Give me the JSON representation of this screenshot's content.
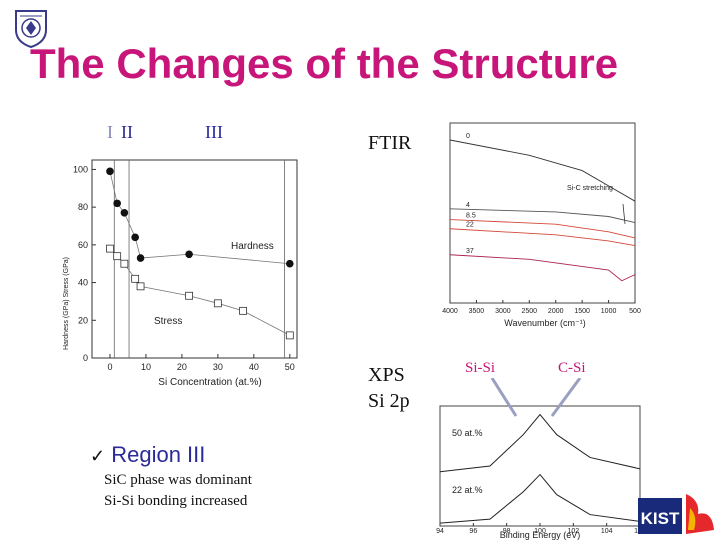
{
  "title": "The Changes of the Structure",
  "regions": {
    "r1": "I",
    "r2": "II",
    "r3": "III"
  },
  "ftir_label": "FTIR",
  "xps_label": "XPS",
  "xps_sub": "Si 2p",
  "xps_peaks": {
    "sisi": "Si-Si",
    "csi": "C-Si"
  },
  "bullet": {
    "heading": "Region III",
    "lines": [
      "SiC phase was dominant",
      "Si-Si bonding increased"
    ]
  },
  "logo": {
    "text": "KIST"
  },
  "chart_data": [
    {
      "type": "scatter",
      "xlabel": "Si Concentration (at.%)",
      "ylabel": "",
      "xlim": [
        -5,
        52
      ],
      "ylim": [
        0,
        105
      ],
      "xticks": [
        "0",
        "10",
        "20",
        "30",
        "40",
        "50"
      ],
      "yticks": [
        "0",
        "20",
        "40",
        "60",
        "80",
        "100"
      ],
      "series": [
        {
          "name": "Hardness",
          "x": [
            0,
            2,
            4,
            7,
            8.5,
            22,
            50
          ],
          "y": [
            99,
            82,
            77,
            64,
            53,
            55,
            50
          ]
        },
        {
          "name": "Stress",
          "x": [
            0,
            2,
            4,
            7,
            8.5,
            22,
            30,
            37,
            50
          ],
          "y": [
            58,
            54,
            50,
            42,
            38,
            33,
            29,
            25,
            12
          ]
        }
      ],
      "y_axis_text": "Hardness (GPa)  Stress (GPa)"
    },
    {
      "type": "line",
      "xlabel": "Wavenumber (cm⁻¹)",
      "xlim": [
        4000,
        500
      ],
      "xticks": [
        "4000",
        "3500",
        "3000",
        "2500",
        "2000",
        "1500",
        "1000",
        "500"
      ],
      "series": [
        {
          "name": "0",
          "x": [
            4000,
            2500,
            1500,
            1000,
            500
          ],
          "y": [
            1.0,
            0.9,
            0.8,
            0.7,
            0.6
          ]
        },
        {
          "name": "4",
          "x": [
            4000,
            2000,
            1000,
            500
          ],
          "y": [
            0.55,
            0.53,
            0.5,
            0.46
          ]
        },
        {
          "name": "8.5",
          "x": [
            4000,
            2000,
            1000,
            500
          ],
          "y": [
            0.48,
            0.45,
            0.4,
            0.36
          ]
        },
        {
          "name": "22",
          "x": [
            4000,
            2000,
            1000,
            500
          ],
          "y": [
            0.42,
            0.38,
            0.34,
            0.31
          ]
        },
        {
          "name": "37",
          "x": [
            4000,
            2500,
            1000,
            750,
            500
          ],
          "y": [
            0.25,
            0.22,
            0.15,
            0.08,
            0.12
          ]
        }
      ],
      "annotation": "Si-C stretching"
    },
    {
      "type": "line",
      "xlabel": "Binding Energy (eV)",
      "xlim": [
        94,
        106
      ],
      "xticks": [
        "94",
        "96",
        "98",
        "100",
        "102",
        "104",
        "106"
      ],
      "series": [
        {
          "name": "50 at.%",
          "x": [
            94,
            97,
            99,
            100,
            101,
            103,
            106
          ],
          "y": [
            0.95,
            1.05,
            1.6,
            1.95,
            1.6,
            1.2,
            1.0
          ]
        },
        {
          "name": "22 at.%",
          "x": [
            94,
            97,
            99,
            100,
            101,
            103,
            106
          ],
          "y": [
            0.05,
            0.12,
            0.6,
            0.9,
            0.55,
            0.2,
            0.08
          ]
        }
      ]
    }
  ]
}
